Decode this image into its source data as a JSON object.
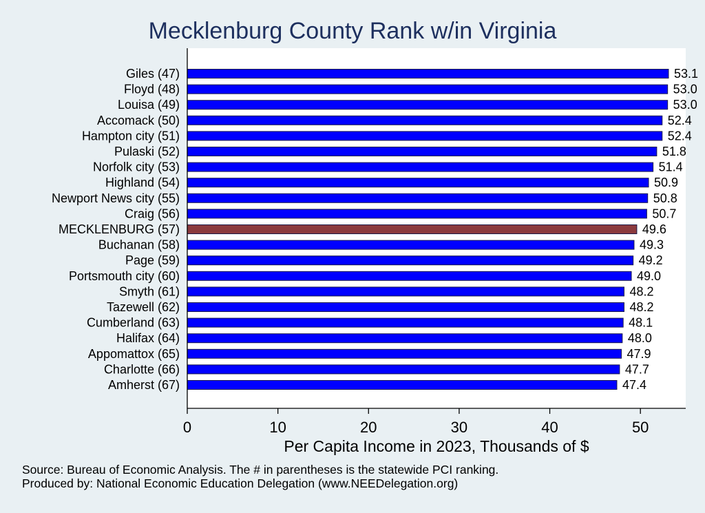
{
  "chart_data": {
    "type": "bar",
    "orientation": "horizontal",
    "title": "Mecklenburg County Rank w/in Virginia",
    "xlabel": "Per Capita Income in 2023, Thousands of $",
    "xlim": [
      0,
      55
    ],
    "xticks": [
      0,
      10,
      20,
      30,
      40,
      50
    ],
    "categories": [
      "Giles (47)",
      "Floyd (48)",
      "Louisa (49)",
      "Accomack (50)",
      "Hampton city (51)",
      "Pulaski (52)",
      "Norfolk city (53)",
      "Highland (54)",
      "Newport News city (55)",
      "Craig (56)",
      "MECKLENBURG (57)",
      "Buchanan (58)",
      "Page (59)",
      "Portsmouth city (60)",
      "Smyth (61)",
      "Tazewell (62)",
      "Cumberland (63)",
      "Halifax (64)",
      "Appomattox (65)",
      "Charlotte (66)",
      "Amherst (67)"
    ],
    "values": [
      53.1,
      53.0,
      53.0,
      52.4,
      52.4,
      51.8,
      51.4,
      50.9,
      50.8,
      50.7,
      49.6,
      49.3,
      49.2,
      49.0,
      48.2,
      48.2,
      48.1,
      48.0,
      47.9,
      47.7,
      47.4
    ],
    "value_labels": [
      "53.1",
      "53.0",
      "53.0",
      "52.4",
      "52.4",
      "51.8",
      "51.4",
      "50.9",
      "50.8",
      "50.7",
      "49.6",
      "49.3",
      "49.2",
      "49.0",
      "48.2",
      "48.2",
      "48.1",
      "48.0",
      "47.9",
      "47.7",
      "47.4"
    ],
    "highlight_category": "MECKLENBURG (57)",
    "colors": {
      "bar": "#0000ff",
      "highlight": "#8b3a3e",
      "bar_edge": "#1a1a4a",
      "background": "#e9f0f3",
      "plot_background": "#ffffff",
      "title": "#1d2f5e"
    },
    "grid": false
  },
  "footer": {
    "source": "Source: Bureau of Economic Analysis. The # in parentheses is the statewide PCI ranking.",
    "produced_by": "Produced by: National Economic Education Delegation (www.NEEDelegation.org)"
  }
}
